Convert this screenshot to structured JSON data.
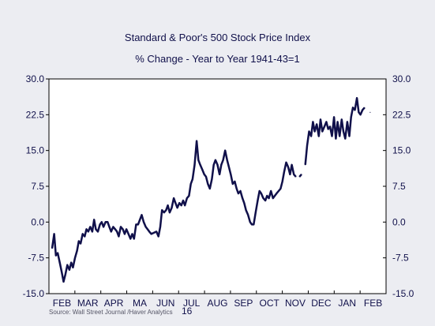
{
  "chart_data": {
    "type": "line",
    "title": "Standard & Poor's 500 Stock Price Index",
    "subtitle": "% Change - Year to Year     1941-43=1",
    "xlabel": "16",
    "ylabel": "",
    "ylim": [
      -15,
      30
    ],
    "yticks": [
      "30.0",
      "22.5",
      "15.0",
      "7.5",
      "0.0",
      "-7.5",
      "-15.0"
    ],
    "xticks": [
      "FEB",
      "MAR",
      "APR",
      "MA",
      "JUN",
      "JUL",
      "AUG",
      "SEP",
      "OCT",
      "NOV",
      "DEC",
      "JAN",
      "FEB"
    ],
    "xlim": [
      0,
      13
    ],
    "source": "Source: Wall Street Journal /Haver Analytics",
    "grid": false,
    "series": [
      {
        "values_x": [
          0.0,
          0.08,
          0.15,
          0.22,
          0.3,
          0.38,
          0.45,
          0.52,
          0.6,
          0.68,
          0.75,
          0.82,
          0.9,
          0.98,
          1.05,
          1.12,
          1.2,
          1.28,
          1.35,
          1.42,
          1.5,
          1.58,
          1.65,
          1.72,
          1.8,
          1.88,
          1.95,
          2.02,
          2.1,
          2.18,
          2.25,
          2.32,
          2.4,
          2.48,
          2.55,
          2.62,
          2.7,
          2.78,
          2.85,
          2.92,
          3.0,
          3.08,
          3.15,
          3.22,
          3.3,
          3.38,
          3.45,
          3.52,
          3.6,
          3.68,
          3.75,
          3.82,
          3.9,
          4.1,
          4.18,
          4.25,
          4.32,
          4.4,
          4.48,
          4.55,
          4.62,
          4.7,
          4.78,
          4.85,
          4.92,
          5.0,
          5.08,
          5.15,
          5.22,
          5.3,
          5.38,
          5.45,
          5.52,
          5.6,
          5.68,
          5.75,
          5.82,
          5.9,
          5.98,
          6.05,
          6.12,
          6.2,
          6.28,
          6.35,
          6.42,
          6.5,
          6.58,
          6.65,
          6.72,
          6.8,
          6.88,
          6.95,
          7.02,
          7.1,
          7.18,
          7.25,
          7.32,
          7.4,
          7.48,
          7.55,
          7.62,
          7.7,
          7.78,
          7.85,
          7.92,
          8.0,
          8.08,
          8.15,
          8.22,
          8.3,
          8.38,
          8.45,
          8.52,
          8.6,
          8.68,
          8.75,
          8.82,
          8.9,
          8.98,
          9.05,
          9.12,
          9.2,
          9.28,
          9.35,
          9.42,
          9.5,
          9.58,
          9.65,
          9.72,
          9.8,
          9.88,
          9.95,
          10.02,
          10.1,
          10.18,
          10.25,
          10.32,
          10.4,
          10.48,
          10.55,
          10.62,
          10.7,
          10.78,
          10.85,
          10.92,
          11.0,
          11.08,
          11.15,
          11.22,
          11.3,
          11.38,
          11.45,
          11.52,
          11.6,
          11.68,
          11.75,
          11.82,
          11.9,
          11.98,
          12.05,
          12.12,
          12.2,
          12.28,
          12.35,
          12.5
        ],
        "values": [
          -5.5,
          -2.5,
          -7,
          -6.5,
          -8.5,
          -10.5,
          -12.5,
          -11,
          -9,
          -10,
          -8.5,
          -9.5,
          -7.5,
          -6,
          -4,
          -4.5,
          -2.5,
          -3,
          -1.5,
          -2,
          -1,
          -2,
          0.5,
          -1.5,
          -2,
          -0.5,
          0,
          -1,
          0,
          0,
          -1,
          -2,
          -1,
          -1.5,
          -2,
          -3,
          -1,
          -1.5,
          -2.5,
          -1.5,
          -2.5,
          -3.5,
          -2.5,
          -3.5,
          -0.5,
          -0.5,
          0.5,
          1.5,
          0,
          -1,
          -1.5,
          -2,
          -2.5,
          -2,
          -3,
          -1,
          2.5,
          2,
          2.5,
          3.5,
          2,
          3,
          5,
          4,
          3,
          4,
          3.5,
          4.5,
          3.5,
          5,
          5.5,
          8,
          9,
          12,
          17,
          13,
          12,
          11,
          10,
          9.5,
          8,
          7,
          9,
          12,
          13,
          12,
          10,
          12,
          13,
          15,
          13,
          11.5,
          10,
          8,
          8.5,
          7,
          6,
          6.5,
          5,
          4,
          2.5,
          1.5,
          0,
          -0.5,
          -0.5,
          2,
          4.5,
          6.5,
          6,
          5,
          4.5,
          5.5,
          5,
          6.5,
          5,
          5.5,
          6,
          6.5,
          7,
          8.5,
          10.5,
          12.5,
          11.5,
          10,
          12,
          10,
          9.5,
          null,
          9.5,
          10,
          null,
          12,
          16,
          19,
          18,
          21,
          19,
          20.5,
          18,
          21.5,
          19,
          20,
          21,
          19.5,
          20,
          18,
          22,
          17.5,
          21,
          18,
          21.5,
          19,
          17.5,
          21,
          18,
          22,
          24,
          23.5,
          26,
          23,
          22.5,
          23.5,
          24,
          null,
          23
        ]
      }
    ]
  }
}
